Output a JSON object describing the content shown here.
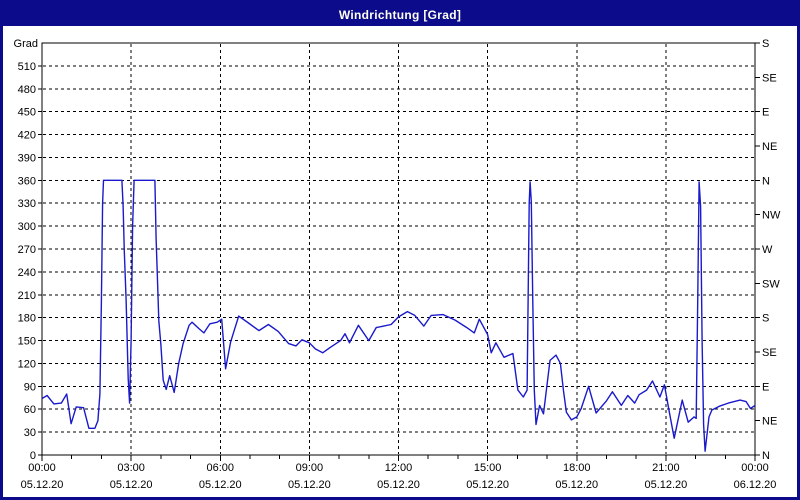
{
  "window": {
    "title": "Windrichtung [Grad]"
  },
  "colors": {
    "titlebar_bg": "#0b0b8b",
    "titlebar_text": "#fffff2",
    "plot_bg": "#ffffff",
    "axis_color": "#000000",
    "grid_color": "#000000",
    "line_color": "#1a1acc"
  },
  "chart_data": {
    "type": "line",
    "title": "Windrichtung [Grad]",
    "ylabel": "Grad",
    "legend": "none",
    "grid": "dashed",
    "y_axis_left": {
      "unit_label": "Grad",
      "min": 0,
      "max": 540,
      "tick_step": 30,
      "last_labeled_tick": 510
    },
    "y_axis_right": {
      "tick_step_degrees": 45,
      "labels_bottom_to_top": [
        "N",
        "NE",
        "E",
        "SE",
        "S",
        "SW",
        "W",
        "NW",
        "N",
        "NE",
        "E",
        "SE",
        "S"
      ]
    },
    "x_axis": {
      "range_hours": [
        0,
        24
      ],
      "major_step_hours": 3,
      "minor_step_hours": 1,
      "ticks": [
        {
          "time": "00:00",
          "date": "05.12.20"
        },
        {
          "time": "03:00",
          "date": "05.12.20"
        },
        {
          "time": "06:00",
          "date": "05.12.20"
        },
        {
          "time": "09:00",
          "date": "05.12.20"
        },
        {
          "time": "12:00",
          "date": "05.12.20"
        },
        {
          "time": "15:00",
          "date": "05.12.20"
        },
        {
          "time": "18:00",
          "date": "05.12.20"
        },
        {
          "time": "21:00",
          "date": "05.12.20"
        },
        {
          "time": "00:00",
          "date": "06.12.20"
        }
      ]
    },
    "series": [
      {
        "name": "Windrichtung",
        "color": "#1a1acc",
        "points": [
          [
            0,
            74
          ],
          [
            0.17,
            78
          ],
          [
            0.4,
            67
          ],
          [
            0.65,
            68
          ],
          [
            0.83,
            80
          ],
          [
            0.98,
            41
          ],
          [
            1.15,
            63
          ],
          [
            1.4,
            62
          ],
          [
            1.58,
            35
          ],
          [
            1.78,
            35
          ],
          [
            1.88,
            45
          ],
          [
            1.95,
            80
          ],
          [
            2.0,
            202
          ],
          [
            2.04,
            330
          ],
          [
            2.07,
            360
          ],
          [
            2.69,
            360
          ],
          [
            2.73,
            327
          ],
          [
            2.77,
            267
          ],
          [
            2.83,
            204
          ],
          [
            2.9,
            100
          ],
          [
            2.95,
            68
          ],
          [
            3.0,
            150
          ],
          [
            3.05,
            300
          ],
          [
            3.1,
            360
          ],
          [
            3.8,
            360
          ],
          [
            3.84,
            284
          ],
          [
            3.88,
            237
          ],
          [
            3.93,
            176
          ],
          [
            4.0,
            146
          ],
          [
            4.08,
            98
          ],
          [
            4.18,
            86
          ],
          [
            4.3,
            104
          ],
          [
            4.45,
            82
          ],
          [
            4.6,
            120
          ],
          [
            4.75,
            146
          ],
          [
            4.95,
            170
          ],
          [
            5.05,
            174
          ],
          [
            5.3,
            165
          ],
          [
            5.45,
            160
          ],
          [
            5.65,
            172
          ],
          [
            5.9,
            174
          ],
          [
            6.05,
            178
          ],
          [
            6.18,
            113
          ],
          [
            6.35,
            148
          ],
          [
            6.62,
            182
          ],
          [
            6.95,
            173
          ],
          [
            7.3,
            163
          ],
          [
            7.62,
            171
          ],
          [
            7.95,
            162
          ],
          [
            8.3,
            146
          ],
          [
            8.55,
            143
          ],
          [
            8.75,
            151
          ],
          [
            9.0,
            147
          ],
          [
            9.2,
            139
          ],
          [
            9.45,
            134
          ],
          [
            9.7,
            141
          ],
          [
            10.05,
            150
          ],
          [
            10.2,
            159
          ],
          [
            10.35,
            147
          ],
          [
            10.65,
            170
          ],
          [
            11.0,
            150
          ],
          [
            11.25,
            167
          ],
          [
            11.5,
            169
          ],
          [
            11.75,
            171
          ],
          [
            12.0,
            181
          ],
          [
            12.3,
            188
          ],
          [
            12.55,
            183
          ],
          [
            12.85,
            169
          ],
          [
            13.1,
            183
          ],
          [
            13.5,
            184
          ],
          [
            13.9,
            177
          ],
          [
            14.3,
            167
          ],
          [
            14.55,
            160
          ],
          [
            14.72,
            178
          ],
          [
            15.0,
            158
          ],
          [
            15.12,
            134
          ],
          [
            15.28,
            147
          ],
          [
            15.55,
            128
          ],
          [
            15.85,
            133
          ],
          [
            16.02,
            85
          ],
          [
            16.2,
            76
          ],
          [
            16.33,
            85
          ],
          [
            16.4,
            330
          ],
          [
            16.43,
            358
          ],
          [
            16.47,
            332
          ],
          [
            16.52,
            200
          ],
          [
            16.57,
            85
          ],
          [
            16.63,
            40
          ],
          [
            16.75,
            65
          ],
          [
            16.88,
            54
          ],
          [
            17.1,
            124
          ],
          [
            17.3,
            131
          ],
          [
            17.45,
            120
          ],
          [
            17.55,
            85
          ],
          [
            17.65,
            56
          ],
          [
            17.82,
            46
          ],
          [
            18.0,
            50
          ],
          [
            18.15,
            61
          ],
          [
            18.4,
            90
          ],
          [
            18.65,
            55
          ],
          [
            19.0,
            71
          ],
          [
            19.2,
            83
          ],
          [
            19.5,
            65
          ],
          [
            19.72,
            78
          ],
          [
            19.95,
            68
          ],
          [
            20.1,
            79
          ],
          [
            20.35,
            85
          ],
          [
            20.55,
            97
          ],
          [
            20.8,
            76
          ],
          [
            20.95,
            92
          ],
          [
            21.1,
            60
          ],
          [
            21.28,
            22
          ],
          [
            21.55,
            72
          ],
          [
            21.75,
            43
          ],
          [
            21.95,
            50
          ],
          [
            22.02,
            48
          ],
          [
            22.07,
            200
          ],
          [
            22.12,
            358
          ],
          [
            22.17,
            326
          ],
          [
            22.22,
            150
          ],
          [
            22.27,
            40
          ],
          [
            22.32,
            5
          ],
          [
            22.45,
            50
          ],
          [
            22.55,
            59
          ],
          [
            22.8,
            64
          ],
          [
            23.1,
            68
          ],
          [
            23.5,
            72
          ],
          [
            23.7,
            70
          ],
          [
            23.85,
            61
          ],
          [
            24.0,
            65
          ]
        ]
      }
    ]
  }
}
